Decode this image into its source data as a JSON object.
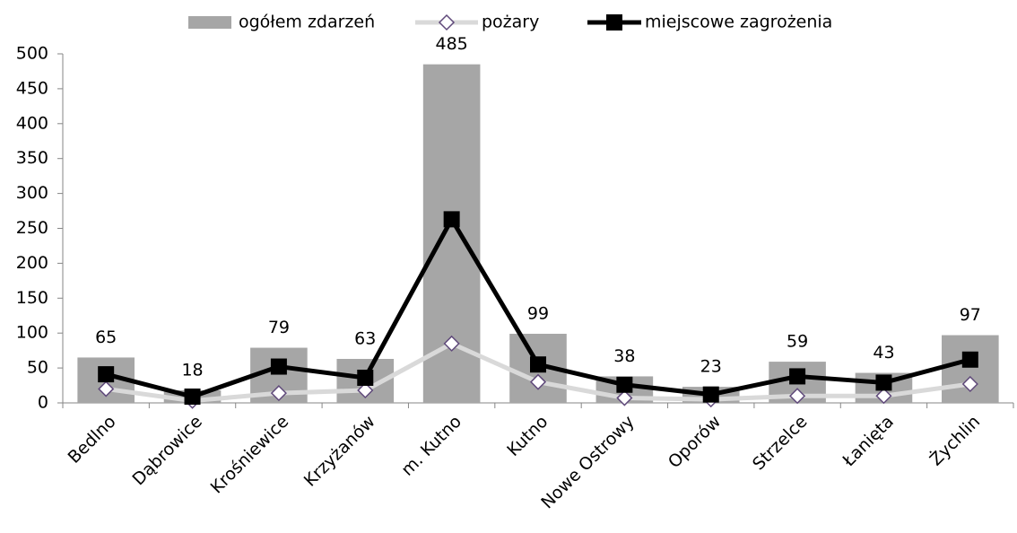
{
  "chart_data": {
    "type": "combo",
    "categories": [
      "Bedlno",
      "Dąbrowice",
      "Krośniewice",
      "Krzyżanów",
      "m. Kutno",
      "Kutno",
      "Nowe Ostrowy",
      "Oporów",
      "Strzelce",
      "Łanięta",
      "Żychlin"
    ],
    "series": [
      {
        "name": "ogółem zdarzeń",
        "type": "bar",
        "color": "#a6a6a6",
        "values": [
          65,
          18,
          79,
          63,
          485,
          99,
          38,
          23,
          59,
          43,
          97
        ],
        "data_labels": true
      },
      {
        "name": "pożary",
        "type": "line",
        "color": "#d9d9d9",
        "marker": "diamond",
        "marker_color": "#5f497a",
        "values": [
          20,
          3,
          14,
          18,
          85,
          30,
          7,
          5,
          10,
          10,
          27
        ]
      },
      {
        "name": "miejscowe zagrożenia",
        "type": "line",
        "color": "#000000",
        "marker": "square",
        "marker_color": "#000000",
        "values": [
          41,
          9,
          52,
          36,
          263,
          55,
          26,
          12,
          38,
          29,
          62
        ]
      }
    ],
    "ylim": [
      0,
      500
    ],
    "yticks": [
      0,
      50,
      100,
      150,
      200,
      250,
      300,
      350,
      400,
      450,
      500
    ],
    "legend": "top",
    "grid": false
  }
}
